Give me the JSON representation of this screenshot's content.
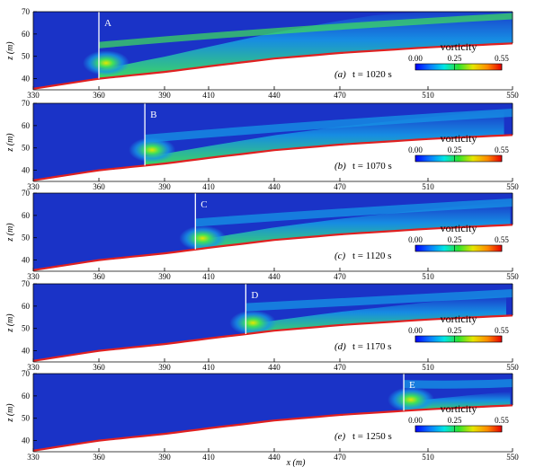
{
  "chart_data": {
    "type": "heatmap",
    "xlabel": "x (m)",
    "ylabel": "z (m)",
    "xlim": [
      330,
      550
    ],
    "ylim": [
      35,
      70
    ],
    "x_ticks": [
      "330",
      "360",
      "390",
      "410",
      "440",
      "470",
      "510",
      "550"
    ],
    "x_tick_values": [
      330,
      360,
      390,
      410,
      440,
      470,
      510,
      550
    ],
    "y_ticks": [
      "40",
      "50",
      "60",
      "70"
    ],
    "y_tick_values": [
      40,
      50,
      60,
      70
    ],
    "colorbar": {
      "label": "vorticity",
      "ticks": [
        "0.00",
        "0.25",
        "0.55"
      ],
      "tick_values": [
        0.0,
        0.25,
        0.55
      ],
      "range": [
        0.0,
        0.55
      ],
      "colors": [
        "#0000ff",
        "#0a78ff",
        "#00e6e6",
        "#2ee32e",
        "#e6e600",
        "#ff8c00",
        "#e60000"
      ]
    },
    "colors": {
      "background": "#1a33c7",
      "mid": "#1696e6",
      "core": "#3fe05a",
      "boundary": "#e02020"
    },
    "bed_profile": {
      "x": [
        330,
        360,
        390,
        410,
        440,
        470,
        510,
        550
      ],
      "z": [
        35.5,
        40.0,
        43.0,
        45.5,
        49.0,
        51.5,
        54.0,
        55.8
      ]
    },
    "panels": [
      {
        "label": "(a)",
        "time": "t = 1020 s",
        "marker": "A",
        "marker_x": 360,
        "front_x": 360
      },
      {
        "label": "(b)",
        "time": "t = 1070 s",
        "marker": "B",
        "marker_x": 381,
        "front_x": 381
      },
      {
        "label": "(c)",
        "time": "t = 1120 s",
        "marker": "C",
        "marker_x": 404,
        "front_x": 404
      },
      {
        "label": "(d)",
        "time": "t = 1170 s",
        "marker": "D",
        "marker_x": 427,
        "front_x": 427
      },
      {
        "label": "(e)",
        "time": "t = 1250 s",
        "marker": "E",
        "marker_x": 499,
        "front_x": 499
      }
    ]
  }
}
